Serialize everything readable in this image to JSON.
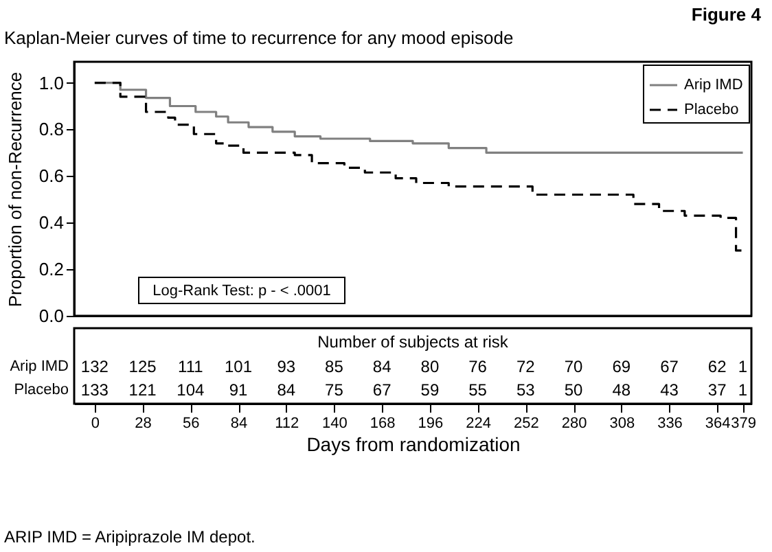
{
  "chart_data": {
    "type": "step",
    "title": "Figure 4",
    "subtitle": "Kaplan-Meier curves of time to recurrence for any mood episode",
    "xlabel": "Days from randomization",
    "ylabel": "Proportion of non-Recurrence",
    "xlim": [
      -12,
      384
    ],
    "ylim": [
      0,
      1.09
    ],
    "xticks": [
      0,
      28,
      56,
      84,
      112,
      140,
      168,
      196,
      224,
      252,
      280,
      308,
      336,
      364,
      379
    ],
    "yticks": [
      {
        "value": 0,
        "label": "0.0"
      },
      0.2,
      0.4,
      0.6,
      0.8,
      {
        "value": 1,
        "label": "1.0"
      }
    ],
    "grid": false,
    "legend": "top right",
    "marker": "none",
    "series": [
      {
        "name": "Arip IMD",
        "color": "#808080",
        "line_style": "solid",
        "x": [
          0,
          15,
          30,
          44,
          59,
          71,
          78,
          90,
          104,
          117,
          132,
          161,
          186,
          207,
          229,
          379
        ],
        "values": [
          1.0,
          0.97,
          0.935,
          0.9,
          0.875,
          0.855,
          0.83,
          0.81,
          0.79,
          0.77,
          0.76,
          0.75,
          0.74,
          0.72,
          0.7,
          0.7
        ]
      },
      {
        "name": "Placebo",
        "color": "#000000",
        "line_style": "dashed",
        "x": [
          0,
          15,
          30,
          43,
          47,
          58,
          71,
          77,
          87,
          117,
          127,
          146,
          158,
          176,
          188,
          207,
          256,
          315,
          330,
          345,
          366,
          375,
          379
        ],
        "values": [
          1.0,
          0.94,
          0.875,
          0.85,
          0.82,
          0.78,
          0.74,
          0.73,
          0.7,
          0.69,
          0.655,
          0.635,
          0.615,
          0.59,
          0.57,
          0.555,
          0.52,
          0.48,
          0.45,
          0.43,
          0.42,
          0.28,
          0.28
        ]
      }
    ],
    "annotations": [
      "Log-Rank Test: p - < .0001",
      "Number of subjects at risk",
      "Arip IMD",
      "132 125 111 101 93 85 84 80 76 72 70 69 67 62 1",
      "Placebo",
      "133 121 104 91 84 75 67 59 55 53 50 48 43 37 1",
      "ARIP IMD = Aripiprazole IM depot."
    ]
  }
}
